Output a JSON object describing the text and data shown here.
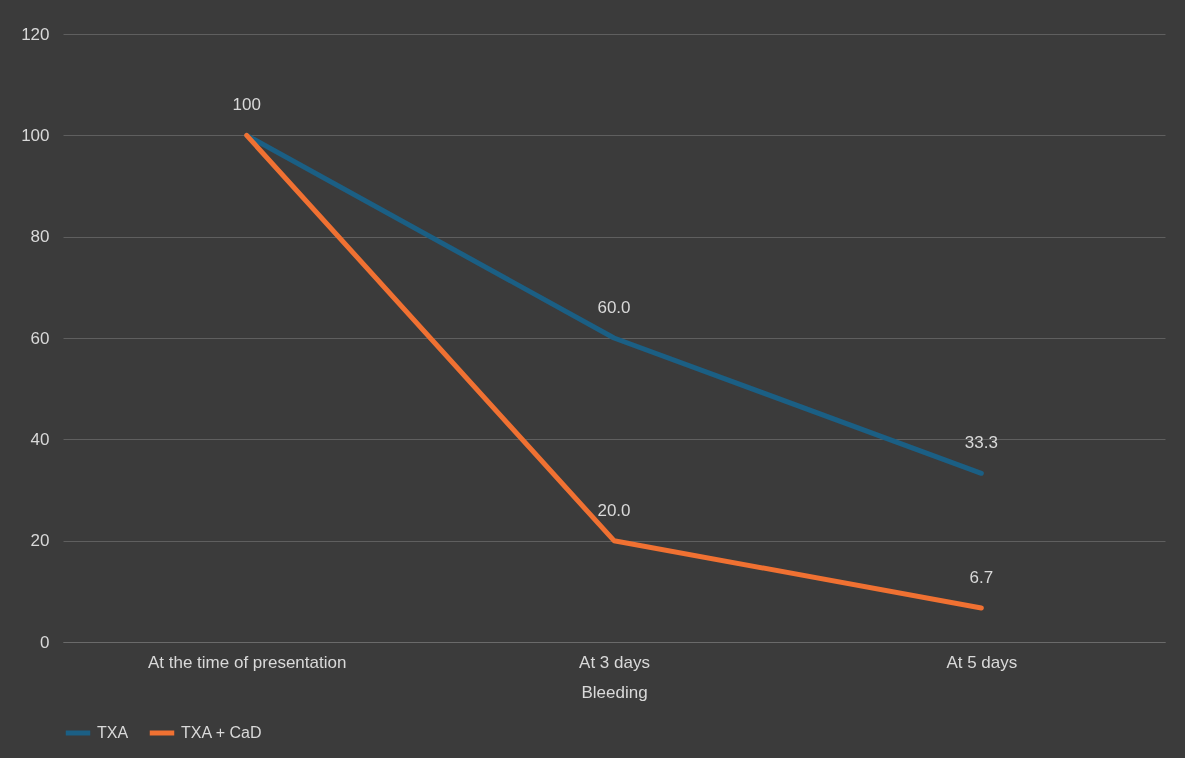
{
  "chart_data": {
    "type": "line",
    "xlabel": "Bleeding",
    "categories": [
      "At the time of presentation",
      "At 3 days",
      "At 5 days"
    ],
    "series": [
      {
        "name": "TXA",
        "color": "#1b5f84",
        "values": [
          100,
          60.0,
          33.3
        ],
        "value_labels": [
          "100",
          "60.0",
          "33.3"
        ]
      },
      {
        "name": "TXA + CaD",
        "color": "#f07132",
        "values": [
          100,
          20.0,
          6.7
        ],
        "value_labels": [
          null,
          "20.0",
          "6.7"
        ]
      }
    ],
    "ylim": [
      0,
      120
    ],
    "yticks": [
      0,
      20,
      40,
      60,
      80,
      100,
      120
    ],
    "grid": "y",
    "legend": "bottom",
    "marker": "none",
    "line_style": "solid"
  }
}
